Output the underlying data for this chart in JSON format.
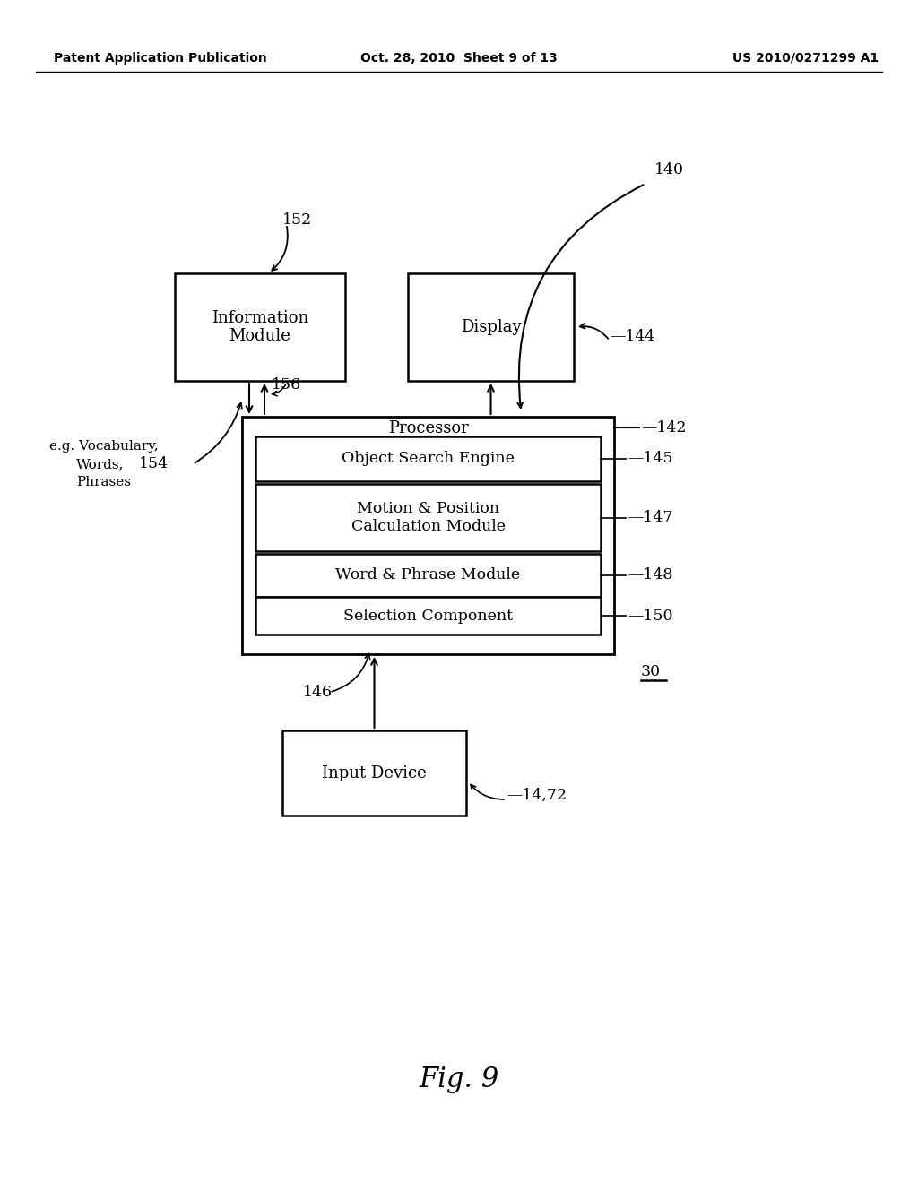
{
  "bg_color": "#ffffff",
  "header_left": "Patent Application Publication",
  "header_mid": "Oct. 28, 2010  Sheet 9 of 13",
  "header_right": "US 2010/0271299 A1",
  "fig_label": "Fig. 9",
  "font_size_header": 10,
  "font_size_box": 13,
  "font_size_label": 12.5
}
